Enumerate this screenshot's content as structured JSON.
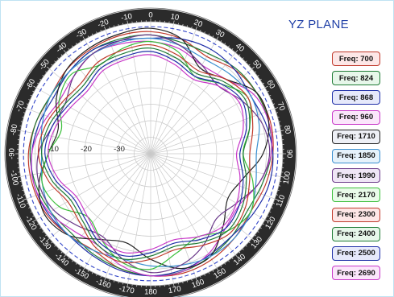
{
  "title": "YZ PLANE",
  "legend": [
    {
      "label": "Freq: 700",
      "border": "#c0392b",
      "fill": "#fde7e7"
    },
    {
      "label": "Freq: 824",
      "border": "#1e7b35",
      "fill": "#e7f7ea"
    },
    {
      "label": "Freq: 868",
      "border": "#1f2fa8",
      "fill": "#e6e9fb"
    },
    {
      "label": "Freq: 960",
      "border": "#c838c8",
      "fill": "#fbe6fb"
    },
    {
      "label": "Freq: 1710",
      "border": "#222222",
      "fill": "#eef0f6"
    },
    {
      "label": "Freq: 1850",
      "border": "#3a8fd0",
      "fill": "#e6f2fb"
    },
    {
      "label": "Freq: 1990",
      "border": "#6b3a8a",
      "fill": "#efe6f6"
    },
    {
      "label": "Freq: 2170",
      "border": "#3cbf3c",
      "fill": "#e9fbe9"
    },
    {
      "label": "Freq: 2300",
      "border": "#c0392b",
      "fill": "#fde7e7"
    },
    {
      "label": "Freq: 2400",
      "border": "#1e7b35",
      "fill": "#e7f7ea"
    },
    {
      "label": "Freq: 2500",
      "border": "#1f2fa8",
      "fill": "#e6e9fb"
    },
    {
      "label": "Freq: 2690",
      "border": "#c838c8",
      "fill": "#fbe6fb"
    }
  ],
  "chart_data": {
    "type": "polar",
    "title": "YZ PLANE",
    "angle_ticks": [
      0,
      10,
      20,
      30,
      40,
      50,
      60,
      70,
      80,
      90,
      100,
      110,
      120,
      130,
      140,
      150,
      160,
      170,
      180,
      -170,
      -160,
      -150,
      -140,
      -130,
      -120,
      -110,
      -100,
      -90,
      -80,
      -70,
      -60,
      -50,
      -40,
      -30,
      -20,
      -10
    ],
    "radial_ticks": [
      -10,
      -20,
      -30
    ],
    "radial_range": [
      -40,
      0
    ],
    "reference_circle_db": -1.5,
    "angles": [
      0,
      15,
      30,
      45,
      60,
      75,
      90,
      105,
      120,
      135,
      150,
      165,
      180,
      195,
      210,
      225,
      240,
      255,
      270,
      285,
      300,
      315,
      330,
      345
    ],
    "series": [
      {
        "name": "Freq: 700",
        "color": "#c0392b",
        "values": [
          -3,
          -4,
          -6,
          -4,
          -3,
          -2.5,
          -3,
          -4,
          -5,
          -4,
          -3,
          -2.5,
          -3,
          -4,
          -6,
          -5,
          -3.5,
          -3,
          -3,
          -4,
          -5,
          -4,
          -3.5,
          -3
        ]
      },
      {
        "name": "Freq: 824",
        "color": "#1e7b35",
        "values": [
          -4,
          -5,
          -5,
          -3.5,
          -3,
          -3,
          -3.5,
          -5,
          -6,
          -5,
          -4,
          -3,
          -3,
          -4,
          -5,
          -6,
          -5,
          -4,
          -3.5,
          -4,
          -5,
          -5,
          -4,
          -4
        ]
      },
      {
        "name": "Freq: 868",
        "color": "#1f2fa8",
        "values": [
          -5,
          -4,
          -3.5,
          -4,
          -5,
          -4,
          -3,
          -3,
          -4,
          -5,
          -4.5,
          -3.5,
          -3,
          -3.5,
          -4.5,
          -5,
          -4,
          -3.5,
          -4,
          -5,
          -6,
          -5,
          -4,
          -4.5
        ]
      },
      {
        "name": "Freq: 960",
        "color": "#c838c8",
        "values": [
          -6,
          -7,
          -9,
          -8,
          -4,
          -3,
          -3.5,
          -6,
          -9,
          -8,
          -5,
          -3,
          -3,
          -5,
          -8,
          -7,
          -4.5,
          -3.5,
          -4,
          -6,
          -8,
          -7,
          -5,
          -5.5
        ]
      },
      {
        "name": "Freq: 1710",
        "color": "#222222",
        "values": [
          -2,
          -4,
          -10,
          -8,
          -3,
          -3,
          -6,
          -11,
          -13,
          -9,
          -4,
          -4,
          -8,
          -12,
          -10,
          -5,
          -3,
          -5,
          -9,
          -11,
          -7,
          -4,
          -3,
          -2.5
        ]
      },
      {
        "name": "Freq: 1850",
        "color": "#3a8fd0",
        "values": [
          -5,
          -6,
          -7,
          -6,
          -5,
          -6,
          -8,
          -7,
          -5,
          -4,
          -4,
          -5,
          -6,
          -7,
          -6,
          -5,
          -5,
          -6,
          -7,
          -6,
          -5,
          -5,
          -5,
          -5
        ]
      },
      {
        "name": "Freq: 1990",
        "color": "#6b3a8a",
        "values": [
          -4,
          -6,
          -9,
          -11,
          -8,
          -5,
          -4,
          -6,
          -10,
          -12,
          -8,
          -5,
          -4,
          -7,
          -11,
          -9,
          -6,
          -5,
          -6,
          -9,
          -10,
          -7,
          -5,
          -4.5
        ]
      },
      {
        "name": "Freq: 2170",
        "color": "#3cbf3c",
        "values": [
          -6,
          -8,
          -13,
          -10,
          -6,
          -9,
          -12,
          -8,
          -5,
          -7,
          -11,
          -9,
          -5,
          -6,
          -10,
          -13,
          -8,
          -6,
          -9,
          -12,
          -8,
          -6,
          -9,
          -7
        ]
      },
      {
        "name": "Freq: 2300",
        "color": "#c0392b",
        "values": [
          -7,
          -9,
          -11,
          -8,
          -6,
          -8,
          -10,
          -9,
          -7,
          -6,
          -8,
          -10,
          -8,
          -6,
          -7,
          -10,
          -11,
          -8,
          -6,
          -7,
          -9,
          -10,
          -8,
          -7.5
        ]
      },
      {
        "name": "Freq: 2400",
        "color": "#1e7b35",
        "values": [
          -8,
          -10,
          -12,
          -9,
          -7,
          -9,
          -12,
          -10,
          -8,
          -7,
          -9,
          -11,
          -9,
          -7,
          -8,
          -11,
          -12,
          -9,
          -7,
          -8,
          -10,
          -11,
          -9,
          -8.5
        ]
      },
      {
        "name": "Freq: 2500",
        "color": "#1f2fa8",
        "values": [
          -9,
          -11,
          -13,
          -10,
          -8,
          -10,
          -13,
          -11,
          -9,
          -8,
          -10,
          -12,
          -10,
          -8,
          -9,
          -12,
          -13,
          -10,
          -8,
          -9,
          -11,
          -12,
          -10,
          -9.5
        ]
      },
      {
        "name": "Freq: 2690",
        "color": "#c838c8",
        "values": [
          -10,
          -12,
          -14,
          -11,
          -9,
          -11,
          -14,
          -12,
          -10,
          -9,
          -11,
          -13,
          -11,
          -9,
          -10,
          -13,
          -14,
          -11,
          -9,
          -10,
          -12,
          -13,
          -11,
          -10.5
        ]
      }
    ]
  }
}
